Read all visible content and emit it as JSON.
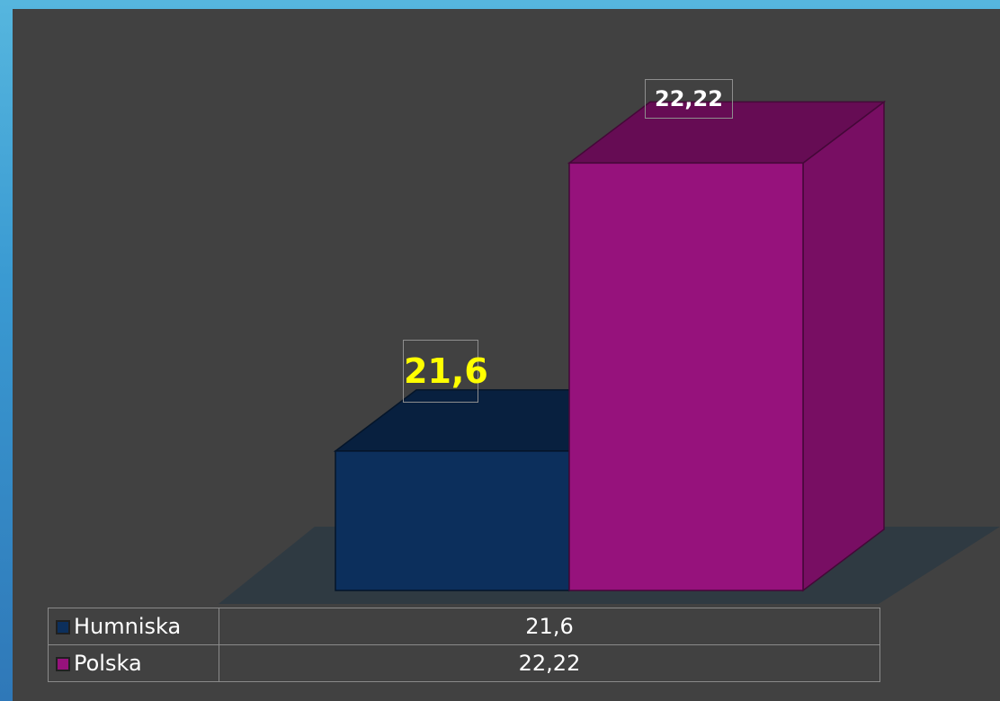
{
  "chart_data": {
    "type": "bar",
    "categories": [
      ""
    ],
    "series": [
      {
        "name": "Humniska",
        "values": [
          21.6
        ],
        "label": "21,6",
        "color": "#0c2f5c"
      },
      {
        "name": "Polska",
        "values": [
          22.22
        ],
        "label": "22,22",
        "color": "#96127c"
      }
    ],
    "ylim": [
      21.3,
      22.3
    ],
    "legend": "data-table-bottom",
    "grid": false
  },
  "table": {
    "rows": [
      {
        "name": "Humniska",
        "value": "21,6"
      },
      {
        "name": "Polska",
        "value": "22,22"
      }
    ]
  },
  "colors": {
    "panel_background": "#414141",
    "slide_background": "#3a9ad2",
    "floor": "#2f3a42",
    "humniska": "#0c2f5c",
    "polska": "#96127c",
    "humniska_label": "#ffff00",
    "polska_label": "#ffffff"
  }
}
